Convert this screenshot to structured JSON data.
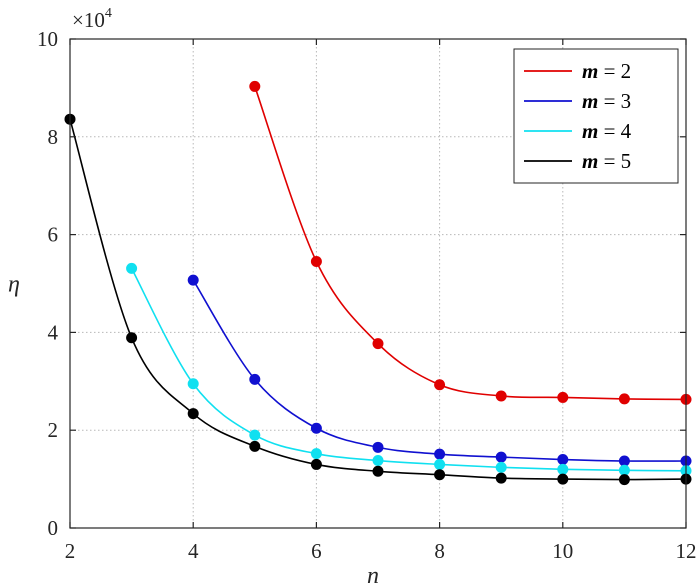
{
  "chart_data": {
    "type": "line",
    "xlabel": "n",
    "ylabel": "η",
    "exponent_label": "×10",
    "exponent_power": "4",
    "xlim": [
      2,
      12
    ],
    "ylim": [
      0,
      10
    ],
    "xticks": [
      2,
      4,
      6,
      8,
      10,
      12
    ],
    "yticks": [
      0,
      2,
      4,
      6,
      8,
      10
    ],
    "x_tick_labels": [
      "2",
      "4",
      "6",
      "8",
      "10",
      "12"
    ],
    "y_tick_labels": [
      "0",
      "2",
      "4",
      "6",
      "8",
      "10"
    ],
    "grid": true,
    "legend_position": "top-right",
    "series": [
      {
        "name": "m = 2",
        "legend_var": "m",
        "legend_value": "2",
        "color": "#e00000",
        "x": [
          5,
          6,
          7,
          8,
          9,
          10,
          11,
          12
        ],
        "y": [
          9.03,
          5.45,
          3.77,
          2.93,
          2.7,
          2.67,
          2.64,
          2.63
        ]
      },
      {
        "name": "m = 3",
        "legend_var": "m",
        "legend_value": "3",
        "color": "#1010d0",
        "x": [
          4,
          5,
          6,
          7,
          8,
          9,
          10,
          11,
          12
        ],
        "y": [
          5.07,
          3.04,
          2.04,
          1.65,
          1.51,
          1.45,
          1.4,
          1.37,
          1.37
        ]
      },
      {
        "name": "m = 4",
        "legend_var": "m",
        "legend_value": "4",
        "color": "#10e0f0",
        "x": [
          3,
          4,
          5,
          6,
          7,
          8,
          9,
          10,
          11,
          12
        ],
        "y": [
          5.31,
          2.95,
          1.9,
          1.52,
          1.38,
          1.3,
          1.24,
          1.2,
          1.18,
          1.17
        ]
      },
      {
        "name": "m = 5",
        "legend_var": "m",
        "legend_value": "5",
        "color": "#000000",
        "x": [
          2,
          3,
          4,
          5,
          6,
          7,
          8,
          9,
          10,
          11,
          12
        ],
        "y": [
          8.36,
          3.89,
          2.34,
          1.67,
          1.3,
          1.16,
          1.09,
          1.02,
          1.0,
          0.99,
          1.0
        ]
      }
    ]
  }
}
